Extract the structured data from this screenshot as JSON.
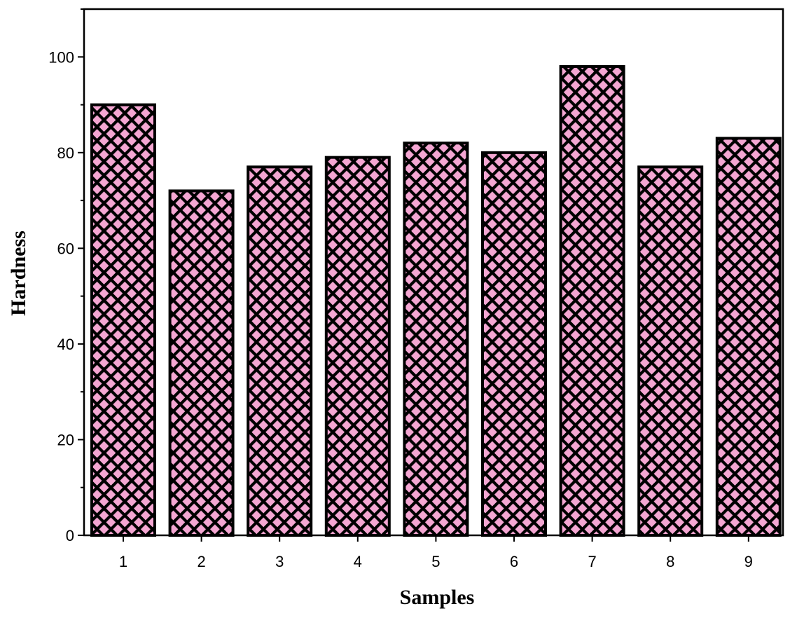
{
  "chart_data": {
    "type": "bar",
    "categories": [
      "1",
      "2",
      "3",
      "4",
      "5",
      "6",
      "7",
      "8",
      "9"
    ],
    "values": [
      90,
      72,
      77,
      79,
      82,
      80,
      98,
      77,
      83
    ],
    "title": "",
    "xlabel": "Samples",
    "ylabel": "Hardness",
    "ylim": [
      0,
      110
    ],
    "yticks": [
      "0",
      "20",
      "40",
      "60",
      "80",
      "100"
    ],
    "grid": false,
    "legend": "none",
    "bar_fill_color": "#f4a6d2",
    "bar_pattern_color": "#000000",
    "bar_edge_color": "#000000"
  }
}
